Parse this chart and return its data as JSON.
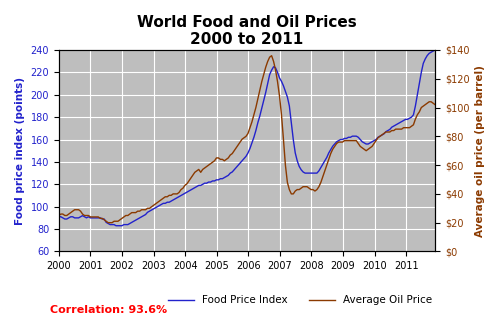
{
  "title": "World Food and Oil Prices\n2000 to 2011",
  "ylabel_left": "Food price index (points)",
  "ylabel_right": "Average oil price (per barrel)",
  "correlation_text": "Correlation: 93.6%",
  "legend_entries": [
    "Food Price Index",
    "Average Oil Price"
  ],
  "food_color": "#2222CC",
  "oil_color": "#8B3A00",
  "background_color": "#BEBEBE",
  "ylim_left": [
    60,
    240
  ],
  "ylim_right": [
    0,
    140
  ],
  "yticks_left": [
    60,
    80,
    100,
    120,
    140,
    160,
    180,
    200,
    220,
    240
  ],
  "yticks_right": [
    0,
    20,
    40,
    60,
    80,
    100,
    120,
    140
  ],
  "ytick_labels_right": [
    "$0",
    "$20",
    "$40",
    "$60",
    "$80",
    "$100",
    "$120",
    "$140"
  ],
  "food_price_index_monthly": [
    91,
    91,
    90,
    89,
    89,
    90,
    91,
    91,
    90,
    90,
    90,
    91,
    92,
    91,
    90,
    91,
    90,
    90,
    90,
    90,
    90,
    90,
    89,
    89,
    86,
    85,
    84,
    84,
    84,
    83,
    83,
    83,
    83,
    84,
    84,
    84,
    85,
    86,
    87,
    88,
    89,
    90,
    91,
    92,
    93,
    95,
    96,
    97,
    98,
    99,
    100,
    101,
    102,
    103,
    103,
    104,
    104,
    105,
    106,
    107,
    108,
    109,
    110,
    111,
    112,
    113,
    114,
    115,
    116,
    117,
    118,
    119,
    119,
    120,
    121,
    121,
    122,
    122,
    123,
    123,
    124,
    124,
    125,
    125,
    126,
    127,
    128,
    130,
    131,
    133,
    135,
    137,
    139,
    141,
    143,
    145,
    148,
    152,
    157,
    162,
    168,
    175,
    181,
    188,
    195,
    202,
    210,
    218,
    222,
    225,
    224,
    220,
    215,
    212,
    208,
    203,
    198,
    190,
    175,
    160,
    148,
    141,
    136,
    133,
    131,
    130,
    130,
    130,
    130,
    130,
    130,
    130,
    132,
    135,
    138,
    141,
    144,
    148,
    151,
    154,
    156,
    158,
    159,
    160,
    160,
    161,
    161,
    162,
    162,
    163,
    163,
    163,
    162,
    160,
    158,
    157,
    156,
    156,
    157,
    158,
    159,
    160,
    162,
    163,
    164,
    165,
    167,
    168,
    169,
    171,
    172,
    173,
    174,
    175,
    176,
    177,
    178,
    178,
    179,
    180,
    182,
    190,
    200,
    210,
    220,
    228,
    232,
    235,
    237,
    238,
    239,
    240
  ],
  "oil_price_monthly": [
    25,
    26,
    26,
    25,
    25,
    26,
    27,
    28,
    29,
    29,
    29,
    28,
    26,
    25,
    25,
    25,
    24,
    24,
    24,
    24,
    24,
    23,
    23,
    22,
    21,
    20,
    20,
    20,
    21,
    21,
    21,
    22,
    23,
    24,
    25,
    25,
    26,
    27,
    27,
    27,
    28,
    28,
    29,
    29,
    29,
    30,
    30,
    31,
    32,
    33,
    34,
    35,
    36,
    37,
    38,
    38,
    39,
    39,
    40,
    40,
    40,
    41,
    43,
    44,
    46,
    47,
    49,
    51,
    53,
    55,
    56,
    57,
    55,
    57,
    58,
    59,
    60,
    61,
    62,
    63,
    65,
    65,
    64,
    64,
    63,
    64,
    65,
    67,
    68,
    70,
    72,
    74,
    76,
    78,
    79,
    80,
    82,
    86,
    90,
    95,
    100,
    106,
    112,
    118,
    123,
    128,
    132,
    135,
    136,
    132,
    126,
    118,
    108,
    95,
    78,
    60,
    48,
    43,
    40,
    40,
    42,
    43,
    43,
    44,
    45,
    45,
    45,
    44,
    43,
    43,
    42,
    43,
    45,
    48,
    52,
    56,
    60,
    64,
    68,
    71,
    73,
    75,
    76,
    76,
    76,
    77,
    77,
    77,
    77,
    77,
    77,
    77,
    75,
    73,
    72,
    71,
    70,
    71,
    72,
    73,
    75,
    77,
    79,
    80,
    81,
    82,
    83,
    83,
    83,
    84,
    84,
    85,
    85,
    85,
    85,
    86,
    86,
    86,
    86,
    87,
    88,
    92,
    95,
    97,
    100,
    101,
    102,
    103,
    104,
    104,
    103,
    102
  ]
}
